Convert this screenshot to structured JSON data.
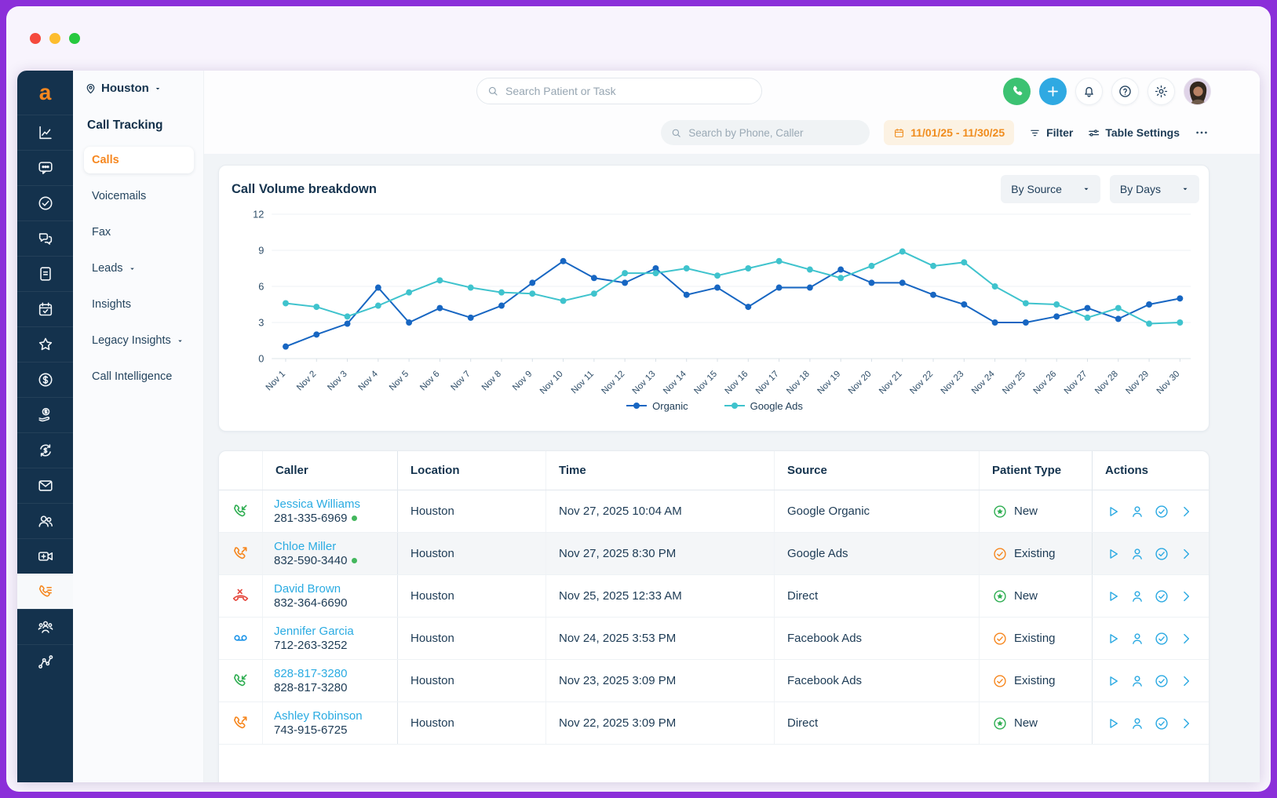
{
  "window": {
    "traffic_lights": [
      "#f5493d",
      "#fdbd2e",
      "#27c93f"
    ]
  },
  "colors": {
    "accent_orange": "#f6871f",
    "rail_navy": "#14324d",
    "link_blue": "#2aabe2",
    "organic_line": "#1766c2",
    "google_ads_line": "#3fc3cd",
    "green_status": "#2fae52",
    "red_missed": "#e5483e",
    "voicemail_blue": "#1a93e8",
    "date_chip_text": "#f08c1d"
  },
  "sidebar_rail": {
    "logo": "a",
    "active": "call-tracking",
    "items": [
      "analytics",
      "messages",
      "tasks",
      "conversations",
      "forms",
      "appointments",
      "reviews",
      "billing",
      "payments",
      "revenue-sync",
      "email",
      "patients",
      "telehealth",
      "call-tracking",
      "team",
      "patient-journey"
    ]
  },
  "nav": {
    "location": "Houston",
    "section": "Call Tracking",
    "items": [
      {
        "label": "Calls",
        "active": true,
        "caret": false
      },
      {
        "label": "Voicemails",
        "active": false,
        "caret": false
      },
      {
        "label": "Fax",
        "active": false,
        "caret": false
      },
      {
        "label": "Leads",
        "active": false,
        "caret": true
      },
      {
        "label": "Insights",
        "active": false,
        "caret": false
      },
      {
        "label": "Legacy Insights",
        "active": false,
        "caret": true
      },
      {
        "label": "Call Intelligence",
        "active": false,
        "caret": false
      }
    ]
  },
  "header": {
    "search_placeholder": "Search Patient or Task"
  },
  "toolbar": {
    "search_placeholder": "Search by Phone, Caller",
    "date_range": "11/01/25 - 11/30/25",
    "filter_label": "Filter",
    "table_settings_label": "Table Settings"
  },
  "chart_card": {
    "title": "Call Volume breakdown",
    "source_dropdown": "By Source",
    "days_dropdown": "By Days"
  },
  "chart_data": {
    "type": "line",
    "title": "Call Volume breakdown",
    "xlabel": "",
    "ylabel": "",
    "ylim": [
      0,
      12
    ],
    "yticks": [
      0,
      3,
      6,
      9,
      12
    ],
    "grid": true,
    "legend_position": "bottom",
    "x": [
      "Nov 1",
      "Nov 2",
      "Nov 3",
      "Nov 4",
      "Nov 5",
      "Nov 6",
      "Nov 7",
      "Nov 8",
      "Nov 9",
      "Nov 10",
      "Nov 11",
      "Nov 12",
      "Nov 13",
      "Nov 14",
      "Nov 15",
      "Nov 16",
      "Nov 17",
      "Nov 18",
      "Nov 19",
      "Nov 20",
      "Nov 21",
      "Nov 22",
      "Nov 23",
      "Nov 24",
      "Nov 25",
      "Nov 26",
      "Nov 27",
      "Nov 28",
      "Nov 29",
      "Nov 30"
    ],
    "series": [
      {
        "name": "Organic",
        "color": "#1766c2",
        "values": [
          1,
          2,
          2.9,
          5.9,
          3,
          4.2,
          3.4,
          4.4,
          6.3,
          8.1,
          6.7,
          6.3,
          7.5,
          5.3,
          5.9,
          4.3,
          5.9,
          5.9,
          7.4,
          6.3,
          6.3,
          5.3,
          4.5,
          3,
          3,
          3.5,
          4.2,
          3.3,
          4.5,
          5
        ]
      },
      {
        "name": "Google Ads",
        "color": "#3fc3cd",
        "values": [
          4.6,
          4.3,
          3.5,
          4.4,
          5.5,
          6.5,
          5.9,
          5.5,
          5.4,
          4.8,
          5.4,
          7.1,
          7.1,
          7.5,
          6.9,
          7.5,
          8.1,
          7.4,
          6.7,
          7.7,
          8.9,
          7.7,
          8,
          6,
          4.6,
          4.5,
          3.4,
          4.2,
          2.9,
          3
        ]
      }
    ]
  },
  "table": {
    "columns": [
      "Caller",
      "Location",
      "Time",
      "Source",
      "Patient Type",
      "Actions"
    ],
    "rows": [
      {
        "call_type": "incoming",
        "name": "Jessica Williams",
        "phone": "281-335-6969",
        "online": true,
        "location": "Houston",
        "time": "Nov 27, 2025 10:04 AM",
        "source": "Google Organic",
        "patient_type": "New",
        "highlight": false
      },
      {
        "call_type": "outgoing",
        "name": "Chloe Miller",
        "phone": "832-590-3440",
        "online": true,
        "location": "Houston",
        "time": "Nov 27, 2025 8:30 PM",
        "source": "Google Ads",
        "patient_type": "Existing",
        "highlight": true
      },
      {
        "call_type": "missed",
        "name": "David Brown",
        "phone": "832-364-6690",
        "online": false,
        "location": "Houston",
        "time": "Nov 25, 2025 12:33 AM",
        "source": "Direct",
        "patient_type": "New",
        "highlight": false
      },
      {
        "call_type": "voicemail",
        "name": "Jennifer Garcia",
        "phone": "712-263-3252",
        "online": false,
        "location": "Houston",
        "time": "Nov 24, 2025 3:53 PM",
        "source": "Facebook Ads",
        "patient_type": "Existing",
        "highlight": false
      },
      {
        "call_type": "incoming",
        "name": "828-817-3280",
        "phone": "828-817-3280",
        "online": false,
        "location": "Houston",
        "time": "Nov 23, 2025 3:09 PM",
        "source": "Facebook Ads",
        "patient_type": "Existing",
        "highlight": false
      },
      {
        "call_type": "outgoing",
        "name": "Ashley Robinson",
        "phone": "743-915-6725",
        "online": false,
        "location": "Houston",
        "time": "Nov 22, 2025 3:09 PM",
        "source": "Direct",
        "patient_type": "New",
        "highlight": false
      }
    ]
  }
}
